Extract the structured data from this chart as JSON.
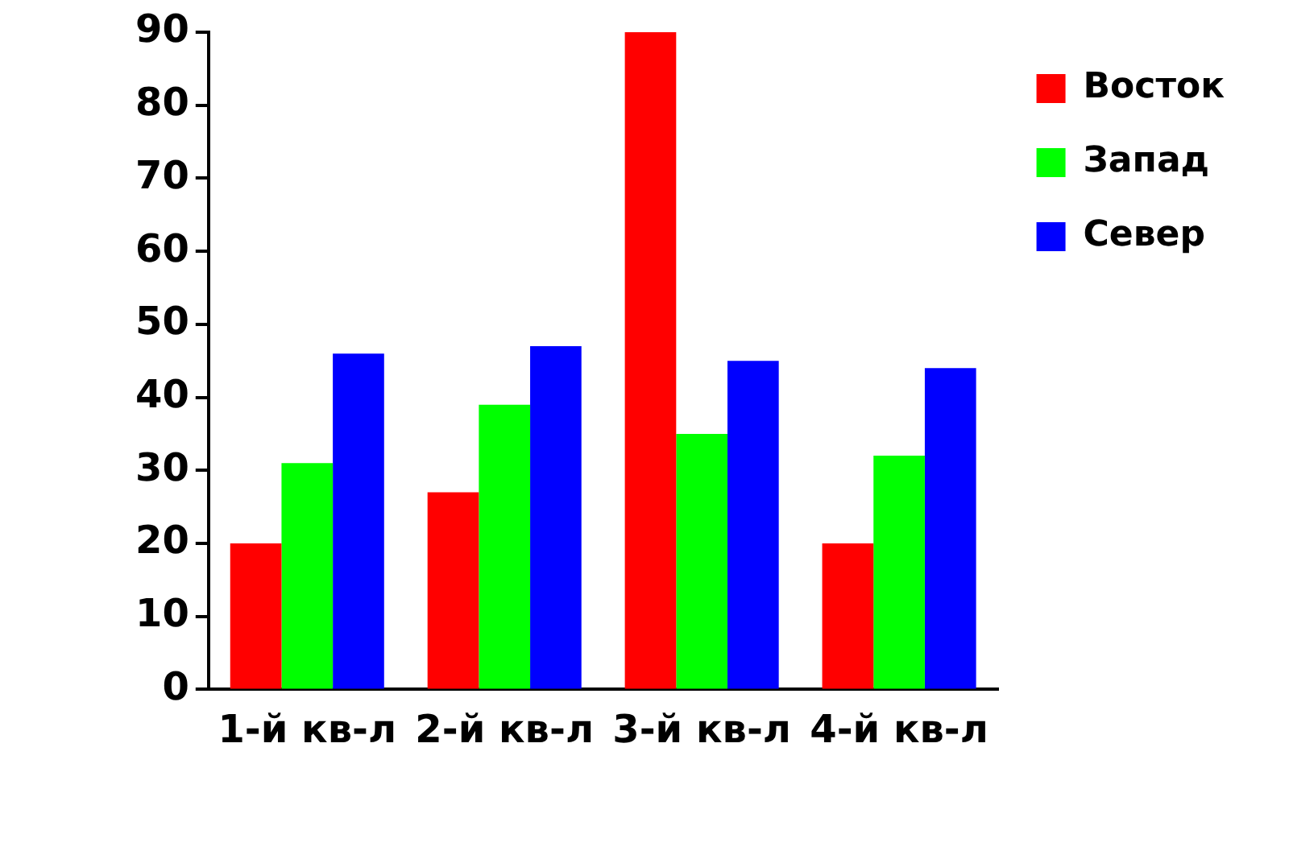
{
  "chart_data": {
    "type": "bar",
    "categories": [
      "1-й кв-л",
      "2-й кв-л",
      "3-й кв-л",
      "4-й кв-л"
    ],
    "series": [
      {
        "name": "Восток",
        "color": "#ff0000",
        "values": [
          20,
          27,
          90,
          20
        ]
      },
      {
        "name": "Запад",
        "color": "#00ff00",
        "values": [
          31,
          39,
          35,
          32
        ]
      },
      {
        "name": "Север",
        "color": "#0000ff",
        "values": [
          46,
          47,
          45,
          44
        ]
      }
    ],
    "ylim": [
      0,
      90
    ],
    "yticks": [
      0,
      10,
      20,
      30,
      40,
      50,
      60,
      70,
      80,
      90
    ],
    "grid": false,
    "legend": "top right"
  }
}
